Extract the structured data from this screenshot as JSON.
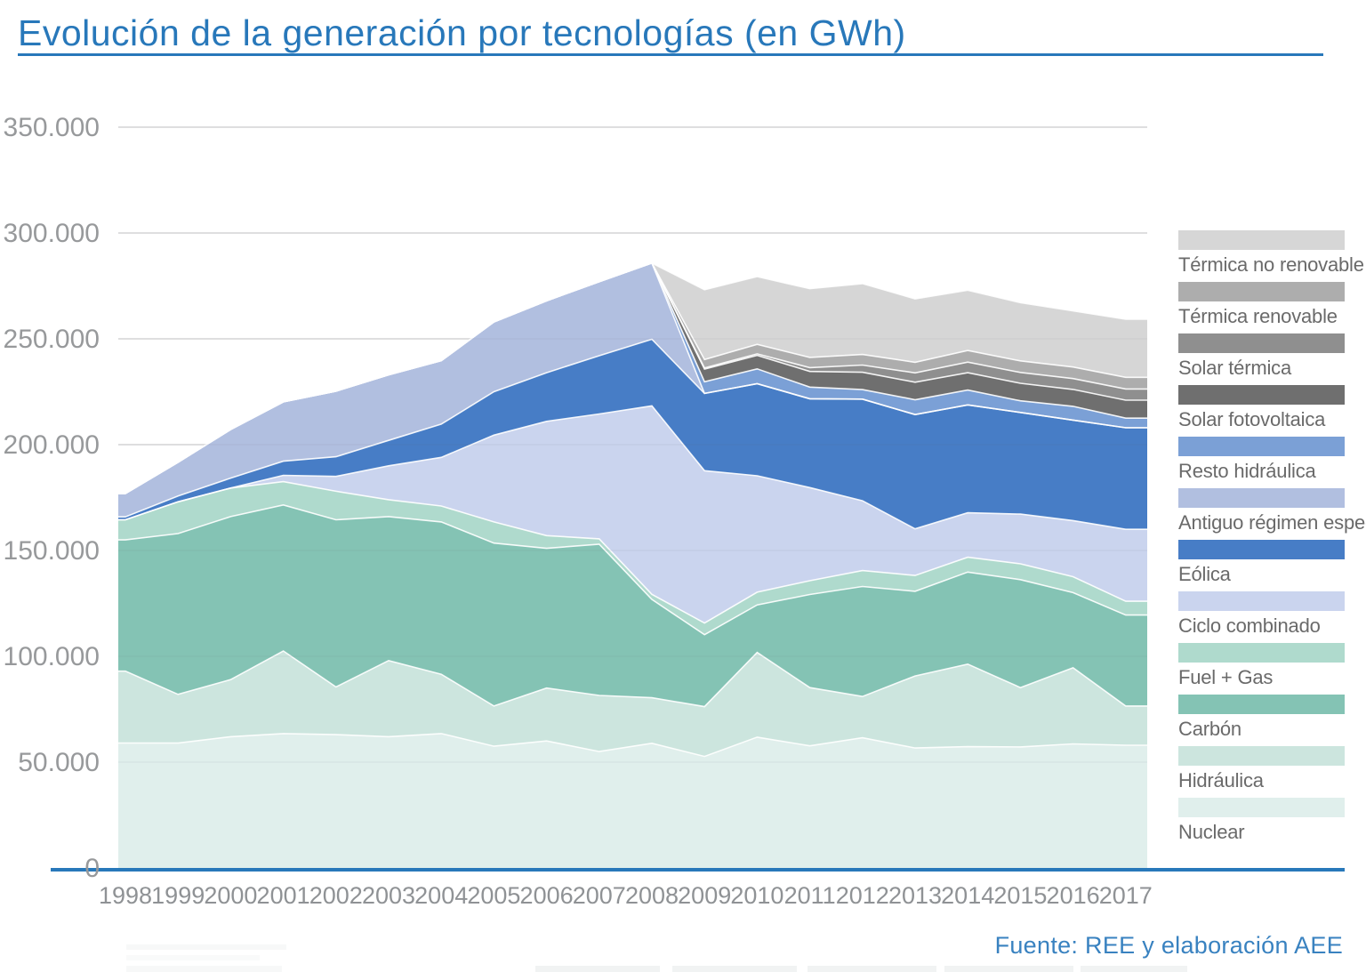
{
  "title": "Evolución de la generación por tecnologías (en GWh)",
  "source": "Fuente: REE y elaboración AEE",
  "accent_color": "#2878ba",
  "chart_data": {
    "type": "area",
    "stacked": true,
    "title": "Evolución de la generación por tecnologías (en GWh)",
    "xlabel": "",
    "ylabel": "GWh",
    "ylim": [
      0,
      350000
    ],
    "grid": true,
    "legend_position": "right",
    "x": [
      1998,
      1999,
      2000,
      2001,
      2002,
      2003,
      2004,
      2005,
      2006,
      2007,
      2008,
      2009,
      2010,
      2011,
      2012,
      2013,
      2014,
      2015,
      2016,
      2017
    ],
    "y_ticks": [
      {
        "value": 350000,
        "label": "350.000"
      },
      {
        "value": 300000,
        "label": "300.000"
      },
      {
        "value": 250000,
        "label": "250.000"
      },
      {
        "value": 200000,
        "label": "200.000"
      },
      {
        "value": 150000,
        "label": "150.000"
      },
      {
        "value": 100000,
        "label": "100.000"
      },
      {
        "value": 50000,
        "label": "50.000"
      },
      {
        "value": 0,
        "label": "0"
      }
    ],
    "series": [
      {
        "key": "nuclear",
        "label": "Nuclear",
        "color": "#e0efec",
        "values": [
          59000,
          59000,
          62000,
          63500,
          63000,
          62000,
          63500,
          57500,
          60000,
          55000,
          58900,
          52700,
          61800,
          57700,
          61500,
          56700,
          57300,
          57200,
          58600,
          58000
        ]
      },
      {
        "key": "hidraulica",
        "label": "Hidráulica",
        "color": "#cce5de",
        "values": [
          34000,
          23000,
          27000,
          39000,
          22500,
          36000,
          28000,
          19000,
          25000,
          26500,
          21500,
          23500,
          40000,
          27500,
          19500,
          34000,
          39000,
          28000,
          36000,
          18500
        ]
      },
      {
        "key": "carbon",
        "label": "Carbón",
        "color": "#84c3b4",
        "values": [
          62000,
          76000,
          77000,
          69000,
          79000,
          68000,
          72000,
          77000,
          66000,
          71500,
          46500,
          34000,
          22500,
          44000,
          52000,
          40000,
          43500,
          51000,
          35500,
          43000
        ]
      },
      {
        "key": "fuel-gas",
        "label": "Fuel + Gas",
        "color": "#afdacd",
        "values": [
          9500,
          15000,
          13500,
          11000,
          13500,
          8000,
          7500,
          10000,
          6000,
          2500,
          2400,
          5500,
          6000,
          6500,
          7500,
          7500,
          7000,
          7500,
          7500,
          6500
        ]
      },
      {
        "key": "ciclo-combinado",
        "label": "Ciclo combinado",
        "color": "#cad4ee",
        "values": [
          0,
          0,
          0,
          3000,
          7000,
          16000,
          23000,
          41000,
          54000,
          59000,
          89000,
          72000,
          55000,
          44000,
          33000,
          22000,
          21000,
          23500,
          26500,
          34000
        ]
      },
      {
        "key": "eolica",
        "label": "Eólica",
        "color": "#477dc6",
        "values": [
          1400,
          2700,
          4700,
          6700,
          9300,
          12000,
          15700,
          20500,
          23000,
          27500,
          31500,
          36500,
          43500,
          42000,
          48000,
          54000,
          51000,
          48000,
          47500,
          48000
        ]
      },
      {
        "key": "antiguo-regimen-especial",
        "label": "Antiguo régimen especial",
        "color": "#b1bfe0",
        "values": [
          11000,
          16000,
          23000,
          28000,
          31000,
          31000,
          30000,
          33000,
          34000,
          35000,
          36000,
          0,
          0,
          0,
          0,
          0,
          0,
          0,
          0,
          0
        ]
      },
      {
        "key": "resto-hidraulica",
        "label": "Resto hidráulica",
        "color": "#7ba0d6",
        "values": [
          0,
          0,
          0,
          0,
          0,
          0,
          0,
          0,
          0,
          0,
          0,
          5500,
          7000,
          5500,
          4500,
          7000,
          7000,
          5500,
          6500,
          4500
        ]
      },
      {
        "key": "solar-fotovoltaica",
        "label": "Solar fotovoltaica",
        "color": "#6f6f6f",
        "values": [
          0,
          0,
          0,
          0,
          0,
          0,
          0,
          0,
          0,
          0,
          0,
          6000,
          6400,
          7400,
          8200,
          8300,
          8200,
          8300,
          8000,
          8500
        ]
      },
      {
        "key": "solar-termica",
        "label": "Solar térmica",
        "color": "#8f8f8f",
        "values": [
          0,
          0,
          0,
          0,
          0,
          0,
          0,
          0,
          0,
          0,
          0,
          500,
          700,
          1800,
          3400,
          4400,
          5000,
          5100,
          5100,
          5300
        ]
      },
      {
        "key": "termica-renovable",
        "label": "Térmica renovable",
        "color": "#adadad",
        "values": [
          0,
          0,
          0,
          0,
          0,
          0,
          0,
          0,
          0,
          0,
          0,
          4000,
          4500,
          4800,
          5000,
          5000,
          5500,
          5500,
          5500,
          5500
        ]
      },
      {
        "key": "termica-no-renovable",
        "label": "Térmica no renovable",
        "color": "#d6d6d6",
        "values": [
          0,
          0,
          0,
          0,
          0,
          0,
          0,
          0,
          0,
          0,
          0,
          33000,
          32000,
          32500,
          33500,
          30000,
          28500,
          27500,
          26500,
          27500
        ]
      }
    ]
  }
}
